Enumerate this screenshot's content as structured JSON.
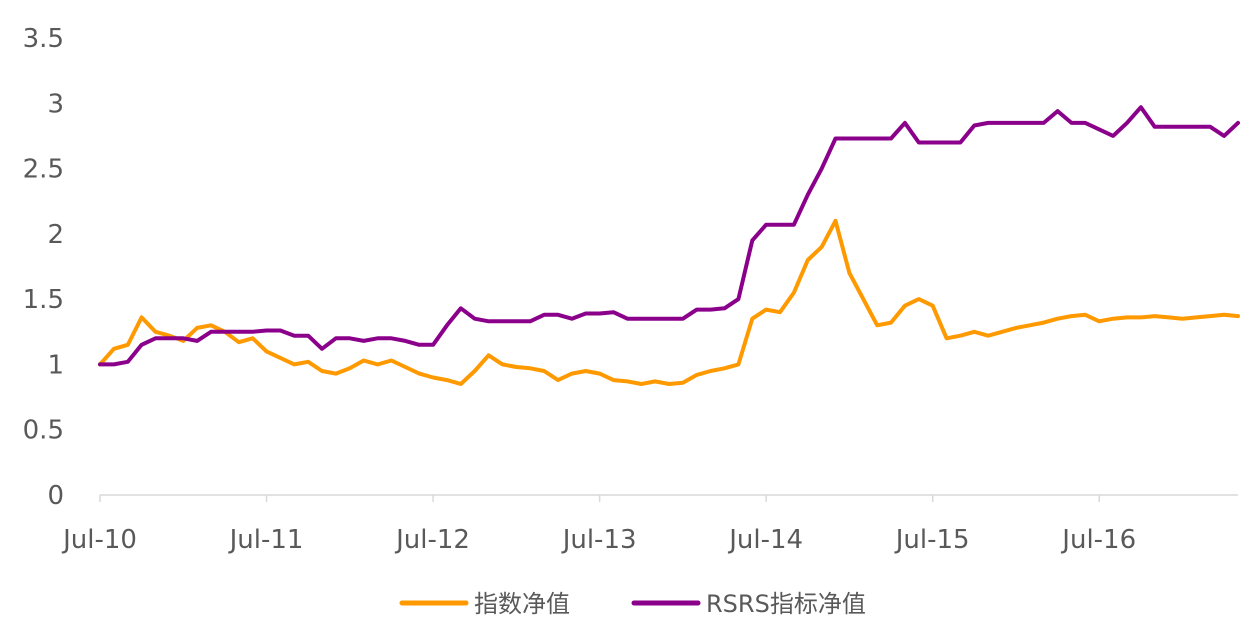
{
  "chart_data": {
    "type": "line",
    "title": "",
    "xlabel": "",
    "ylabel": "",
    "ylim": [
      0,
      3.5
    ],
    "yticks": [
      "0",
      "0.5",
      "1",
      "1.5",
      "2",
      "2.5",
      "3",
      "3.5"
    ],
    "xlim": [
      "2010-07",
      "2017-05"
    ],
    "xticks": [
      "Jul-10",
      "Jul-11",
      "Jul-12",
      "Jul-13",
      "Jul-14",
      "Jul-15",
      "Jul-16"
    ],
    "grid": false,
    "legend_position": "bottom",
    "series": [
      {
        "name": "指数净值",
        "color": "#FF9900",
        "x": [
          "2010-07",
          "2010-08",
          "2010-09",
          "2010-10",
          "2010-11",
          "2010-12",
          "2011-01",
          "2011-02",
          "2011-03",
          "2011-04",
          "2011-05",
          "2011-06",
          "2011-07",
          "2011-08",
          "2011-09",
          "2011-10",
          "2011-11",
          "2011-12",
          "2012-01",
          "2012-02",
          "2012-03",
          "2012-04",
          "2012-05",
          "2012-06",
          "2012-07",
          "2012-08",
          "2012-09",
          "2012-10",
          "2012-11",
          "2012-12",
          "2013-01",
          "2013-02",
          "2013-03",
          "2013-04",
          "2013-05",
          "2013-06",
          "2013-07",
          "2013-08",
          "2013-09",
          "2013-10",
          "2013-11",
          "2013-12",
          "2014-01",
          "2014-02",
          "2014-03",
          "2014-04",
          "2014-05",
          "2014-06",
          "2014-07",
          "2014-08",
          "2014-09",
          "2014-10",
          "2014-11",
          "2014-12",
          "2015-01",
          "2015-02",
          "2015-03",
          "2015-04",
          "2015-05",
          "2015-06",
          "2015-07",
          "2015-08",
          "2015-09",
          "2015-10",
          "2015-11",
          "2015-12",
          "2016-01",
          "2016-02",
          "2016-03",
          "2016-04",
          "2016-05",
          "2016-06",
          "2016-07",
          "2016-08",
          "2016-09",
          "2016-10",
          "2016-11",
          "2016-12",
          "2017-01",
          "2017-02",
          "2017-03",
          "2017-04",
          "2017-05"
        ],
        "values": [
          1.0,
          1.12,
          1.15,
          1.36,
          1.25,
          1.22,
          1.18,
          1.28,
          1.3,
          1.25,
          1.17,
          1.2,
          1.1,
          1.05,
          1.0,
          1.02,
          0.95,
          0.93,
          0.97,
          1.03,
          1.0,
          1.03,
          0.98,
          0.93,
          0.9,
          0.88,
          0.85,
          0.95,
          1.07,
          1.0,
          0.98,
          0.97,
          0.95,
          0.88,
          0.93,
          0.95,
          0.93,
          0.88,
          0.87,
          0.85,
          0.87,
          0.85,
          0.86,
          0.92,
          0.95,
          0.97,
          1.0,
          1.35,
          1.42,
          1.4,
          1.55,
          1.8,
          1.9,
          2.1,
          1.7,
          1.5,
          1.3,
          1.32,
          1.45,
          1.5,
          1.45,
          1.2,
          1.22,
          1.25,
          1.22,
          1.25,
          1.28,
          1.3,
          1.32,
          1.35,
          1.37,
          1.38,
          1.33,
          1.35,
          1.36,
          1.36,
          1.37,
          1.36,
          1.35,
          1.36,
          1.37,
          1.38,
          1.37
        ]
      },
      {
        "name": "RSRS指标净值",
        "color": "#8B008B",
        "x": [
          "2010-07",
          "2010-08",
          "2010-09",
          "2010-10",
          "2010-11",
          "2010-12",
          "2011-01",
          "2011-02",
          "2011-03",
          "2011-04",
          "2011-05",
          "2011-06",
          "2011-07",
          "2011-08",
          "2011-09",
          "2011-10",
          "2011-11",
          "2011-12",
          "2012-01",
          "2012-02",
          "2012-03",
          "2012-04",
          "2012-05",
          "2012-06",
          "2012-07",
          "2012-08",
          "2012-09",
          "2012-10",
          "2012-11",
          "2012-12",
          "2013-01",
          "2013-02",
          "2013-03",
          "2013-04",
          "2013-05",
          "2013-06",
          "2013-07",
          "2013-08",
          "2013-09",
          "2013-10",
          "2013-11",
          "2013-12",
          "2014-01",
          "2014-02",
          "2014-03",
          "2014-04",
          "2014-05",
          "2014-06",
          "2014-07",
          "2014-08",
          "2014-09",
          "2014-10",
          "2014-11",
          "2014-12",
          "2015-01",
          "2015-02",
          "2015-03",
          "2015-04",
          "2015-05",
          "2015-06",
          "2015-07",
          "2015-08",
          "2015-09",
          "2015-10",
          "2015-11",
          "2015-12",
          "2016-01",
          "2016-02",
          "2016-03",
          "2016-04",
          "2016-05",
          "2016-06",
          "2016-07",
          "2016-08",
          "2016-09",
          "2016-10",
          "2016-11",
          "2016-12",
          "2017-01",
          "2017-02",
          "2017-03",
          "2017-04",
          "2017-05"
        ],
        "values": [
          1.0,
          1.0,
          1.02,
          1.15,
          1.2,
          1.2,
          1.2,
          1.18,
          1.25,
          1.25,
          1.25,
          1.25,
          1.26,
          1.26,
          1.22,
          1.22,
          1.12,
          1.2,
          1.2,
          1.18,
          1.2,
          1.2,
          1.18,
          1.15,
          1.15,
          1.3,
          1.43,
          1.35,
          1.33,
          1.33,
          1.33,
          1.33,
          1.38,
          1.38,
          1.35,
          1.39,
          1.39,
          1.4,
          1.35,
          1.35,
          1.35,
          1.35,
          1.35,
          1.42,
          1.42,
          1.43,
          1.5,
          1.95,
          2.07,
          2.07,
          2.07,
          2.3,
          2.5,
          2.73,
          2.73,
          2.73,
          2.73,
          2.73,
          2.85,
          2.7,
          2.7,
          2.7,
          2.7,
          2.83,
          2.85,
          2.85,
          2.85,
          2.85,
          2.85,
          2.94,
          2.85,
          2.85,
          2.8,
          2.75,
          2.85,
          2.97,
          2.82,
          2.82,
          2.82,
          2.82,
          2.82,
          2.75,
          2.85
        ]
      }
    ]
  }
}
